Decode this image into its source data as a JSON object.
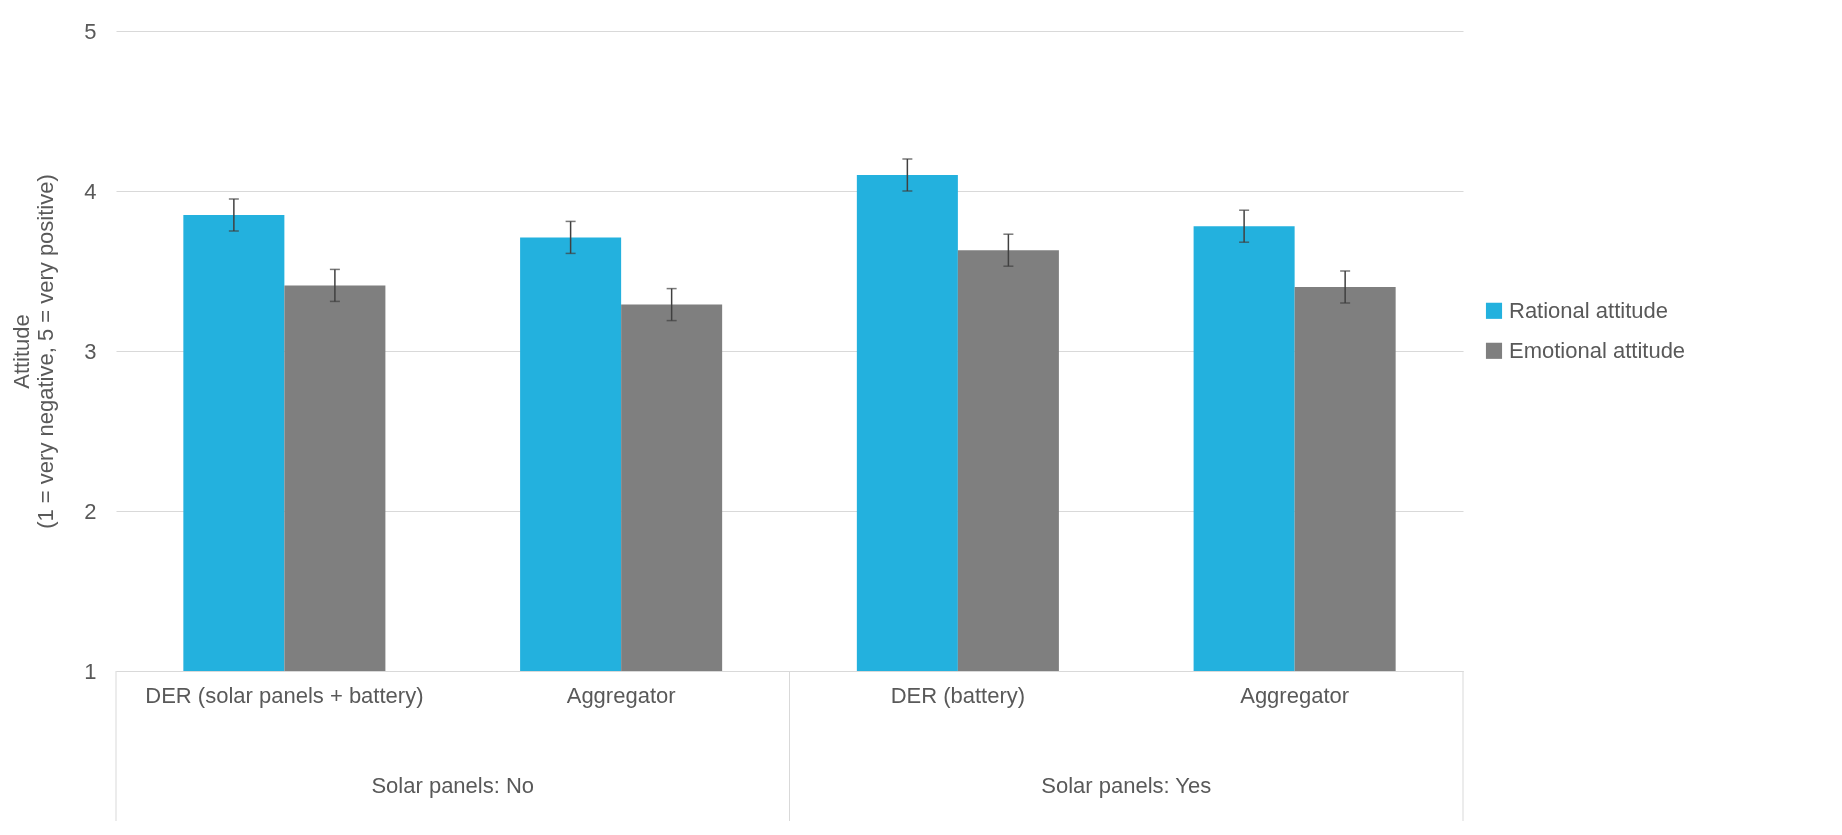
{
  "chart_data": {
    "type": "bar",
    "ylabel": "Attitude\n(1 = very negative, 5 = very positive)",
    "categories": [
      "DER (solar panels + battery)",
      "Aggregator",
      "DER (battery)",
      "Aggregator"
    ],
    "series": [
      {
        "name": "Rational attitude",
        "color": "#23b1de",
        "values": [
          3.85,
          3.71,
          4.1,
          3.78
        ],
        "errors": [
          0.1,
          0.1,
          0.1,
          0.1
        ]
      },
      {
        "name": "Emotional attitude",
        "color": "#7f7f7f",
        "values": [
          3.41,
          3.29,
          3.63,
          3.4
        ],
        "errors": [
          0.1,
          0.1,
          0.1,
          0.1
        ]
      }
    ],
    "annotations": [
      "Solar panels: No",
      "Solar panels: Yes"
    ],
    "ylim": [
      1,
      5
    ],
    "yticks": [
      1,
      2,
      3,
      4,
      5
    ],
    "grid": "y",
    "legend": "right"
  }
}
